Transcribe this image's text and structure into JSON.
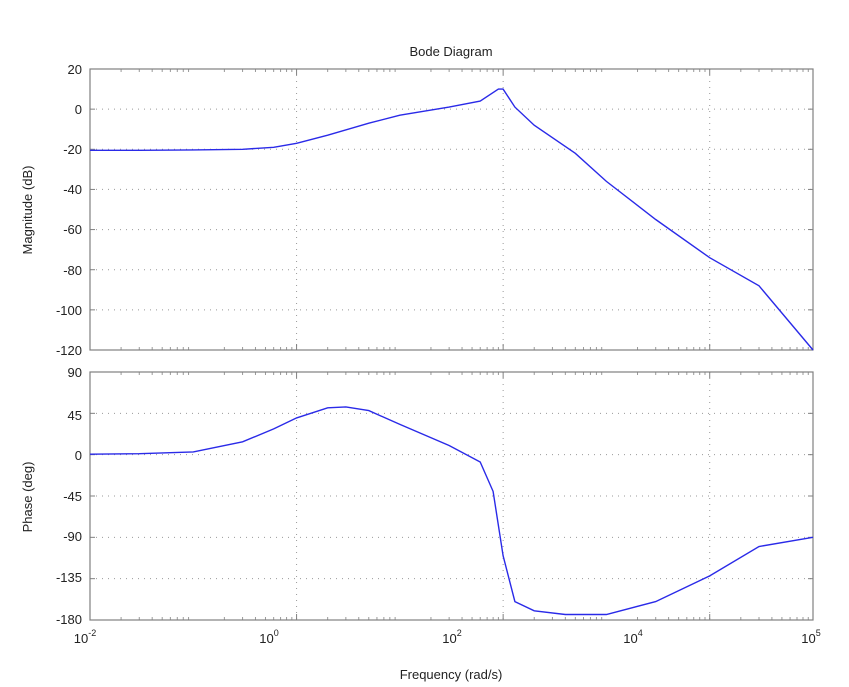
{
  "figure": {
    "title": "Bode Diagram",
    "xlabel": "Frequency (rad/s)",
    "line_color": "#2a2ae8",
    "grid_color": "#999999",
    "axes_color": "#808080"
  },
  "chart_data": [
    {
      "type": "line",
      "title": "Bode Diagram",
      "panel": "magnitude",
      "xlabel": "Frequency (rad/s)",
      "ylabel": "Magnitude (dB)",
      "xscale": "log",
      "xlim": [
        0.01,
        100000
      ],
      "ylim": [
        -120,
        20
      ],
      "grid": true,
      "xticks": [
        0.01,
        1,
        100,
        10000,
        100000
      ],
      "xtick_labels": [
        "10^-2",
        "10^0",
        "10^2",
        "10^4",
        "10^5"
      ],
      "yticks": [
        20,
        0,
        -20,
        -40,
        -60,
        -80,
        -100,
        -120
      ],
      "series": [
        {
          "name": "Magnitude",
          "x": [
            0.01,
            0.03,
            0.1,
            0.3,
            0.6,
            1,
            2,
            5,
            10,
            30,
            60,
            90,
            100,
            130,
            200,
            500,
            1000,
            3000,
            10000,
            30000,
            100000
          ],
          "y": [
            -20.5,
            -20.5,
            -20.3,
            -20,
            -19,
            -17,
            -13,
            -7,
            -3,
            1,
            4,
            10,
            10,
            1,
            -8,
            -22,
            -36,
            -55,
            -74,
            -88,
            -120
          ]
        }
      ]
    },
    {
      "type": "line",
      "panel": "phase",
      "xlabel": "Frequency (rad/s)",
      "ylabel": "Phase (deg)",
      "xscale": "log",
      "xlim": [
        0.01,
        100000
      ],
      "ylim": [
        -180,
        90
      ],
      "grid": true,
      "xticks": [
        0.01,
        1,
        100,
        10000,
        100000
      ],
      "xtick_labels": [
        "10^-2",
        "10^0",
        "10^2",
        "10^4",
        "10^5"
      ],
      "yticks": [
        90,
        45,
        0,
        -45,
        -90,
        -135,
        -180
      ],
      "series": [
        {
          "name": "Phase",
          "x": [
            0.01,
            0.03,
            0.1,
            0.3,
            0.6,
            1,
            2,
            3,
            5,
            10,
            30,
            60,
            80,
            100,
            130,
            200,
            400,
            1000,
            3000,
            10000,
            30000,
            100000
          ],
          "y": [
            0.5,
            1,
            3,
            14,
            28,
            40,
            51,
            52,
            48,
            33,
            10,
            -8,
            -40,
            -110,
            -160,
            -170,
            -174,
            -174,
            -160,
            -132,
            -100,
            -90
          ]
        }
      ]
    }
  ],
  "axes": {
    "mag": {
      "ylabel": "Magnitude (dB)",
      "yticks": [
        "20",
        "0",
        "-20",
        "-40",
        "-60",
        "-80",
        "-100",
        "-120"
      ]
    },
    "phase": {
      "ylabel": "Phase (deg)",
      "yticks": [
        "90",
        "45",
        "0",
        "-45",
        "-90",
        "-135",
        "-180"
      ]
    },
    "xticks": [
      {
        "base": "10",
        "exp": "-2"
      },
      {
        "base": "10",
        "exp": "0"
      },
      {
        "base": "10",
        "exp": "2"
      },
      {
        "base": "10",
        "exp": "4"
      },
      {
        "base": "10",
        "exp": "5"
      }
    ]
  }
}
